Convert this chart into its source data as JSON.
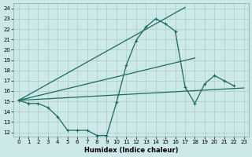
{
  "xlabel": "Humidex (Indice chaleur)",
  "bg_color": "#cde8e8",
  "line_color": "#1a6b5e",
  "grid_color": "#aacccc",
  "xlim": [
    -0.5,
    23.5
  ],
  "ylim": [
    11.6,
    24.5
  ],
  "xticks": [
    0,
    1,
    2,
    3,
    4,
    5,
    6,
    7,
    8,
    9,
    10,
    11,
    12,
    13,
    14,
    15,
    16,
    17,
    18,
    19,
    20,
    21,
    22,
    23
  ],
  "yticks": [
    12,
    13,
    14,
    15,
    16,
    17,
    18,
    19,
    20,
    21,
    22,
    23,
    24
  ],
  "line_dip": {
    "x": [
      0,
      1,
      2,
      3,
      4,
      5,
      6,
      7,
      8,
      9,
      10,
      11,
      12,
      13,
      14,
      15,
      16,
      17,
      18,
      19,
      20,
      21,
      22
    ],
    "y": [
      15.1,
      14.8,
      14.8,
      14.4,
      13.5,
      12.2,
      12.2,
      12.2,
      11.7,
      11.7,
      14.9,
      18.5,
      20.9,
      22.2,
      23.0,
      22.5,
      21.8,
      16.4,
      14.8,
      16.7,
      17.5,
      17.0,
      16.5
    ]
  },
  "line_straight_low": {
    "x": [
      0,
      23
    ],
    "y": [
      15.1,
      16.3
    ]
  },
  "line_straight_mid": {
    "x": [
      0,
      18
    ],
    "y": [
      15.1,
      19.2
    ]
  },
  "line_straight_high": {
    "x": [
      0,
      17
    ],
    "y": [
      15.1,
      24.1
    ]
  }
}
